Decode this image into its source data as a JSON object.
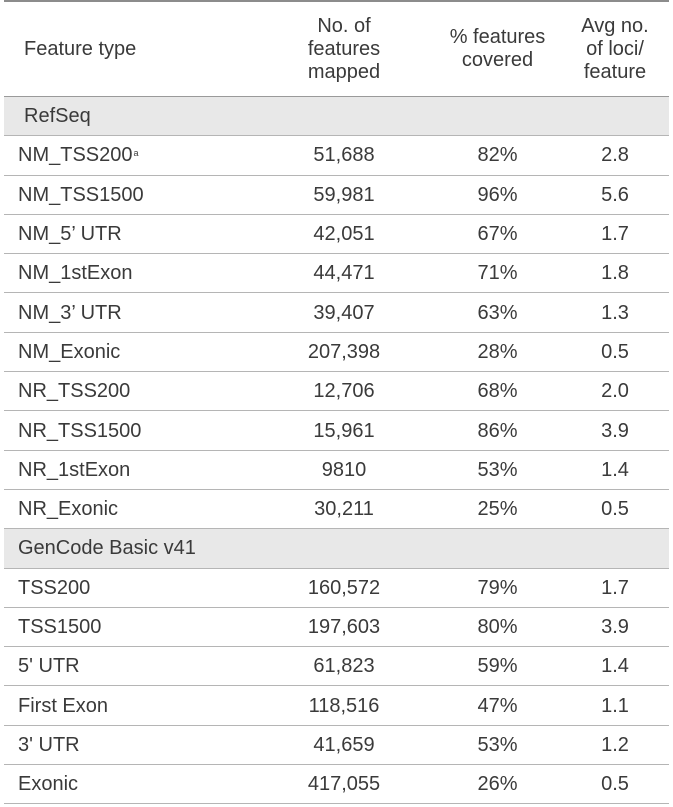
{
  "headers": {
    "feature_type": "Feature type",
    "no_features_mapped": [
      "No. of",
      "features",
      "mapped"
    ],
    "pct_features_covered": [
      "% features",
      "covered"
    ],
    "avg_loci": [
      "Avg no.",
      "of loci/",
      "feature"
    ]
  },
  "sections": [
    {
      "title": "RefSeq",
      "rows": [
        {
          "feature": "NM_TSS200",
          "sup": "a",
          "mapped": "51,688",
          "covered": "82%",
          "avg": "2.8"
        },
        {
          "feature": "NM_TSS1500",
          "sup": "",
          "mapped": "59,981",
          "covered": "96%",
          "avg": "5.6"
        },
        {
          "feature": "NM_5’ UTR",
          "sup": "",
          "mapped": "42,051",
          "covered": "67%",
          "avg": "1.7"
        },
        {
          "feature": "NM_1stExon",
          "sup": "",
          "mapped": "44,471",
          "covered": "71%",
          "avg": "1.8"
        },
        {
          "feature": "NM_3’ UTR",
          "sup": "",
          "mapped": "39,407",
          "covered": "63%",
          "avg": "1.3"
        },
        {
          "feature": "NM_Exonic",
          "sup": "",
          "mapped": "207,398",
          "covered": "28%",
          "avg": "0.5"
        },
        {
          "feature": "NR_TSS200",
          "sup": "",
          "mapped": "12,706",
          "covered": "68%",
          "avg": "2.0"
        },
        {
          "feature": "NR_TSS1500",
          "sup": "",
          "mapped": "15,961",
          "covered": "86%",
          "avg": "3.9"
        },
        {
          "feature": "NR_1stExon",
          "sup": "",
          "mapped": "9810",
          "covered": "53%",
          "avg": "1.4"
        },
        {
          "feature": "NR_Exonic",
          "sup": "",
          "mapped": "30,211",
          "covered": "25%",
          "avg": "0.5"
        }
      ]
    },
    {
      "title": "GenCode Basic v41",
      "rows": [
        {
          "feature": "TSS200",
          "sup": "",
          "mapped": "160,572",
          "covered": "79%",
          "avg": "1.7"
        },
        {
          "feature": "TSS1500",
          "sup": "",
          "mapped": "197,603",
          "covered": "80%",
          "avg": "3.9"
        },
        {
          "feature": "5' UTR",
          "sup": "",
          "mapped": "61,823",
          "covered": "59%",
          "avg": "1.4"
        },
        {
          "feature": "First Exon",
          "sup": "",
          "mapped": "118,516",
          "covered": "47%",
          "avg": "1.1"
        },
        {
          "feature": "3' UTR",
          "sup": "",
          "mapped": "41,659",
          "covered": "53%",
          "avg": "1.2"
        },
        {
          "feature": "Exonic",
          "sup": "",
          "mapped": "417,055",
          "covered": "26%",
          "avg": "0.5"
        }
      ]
    }
  ]
}
